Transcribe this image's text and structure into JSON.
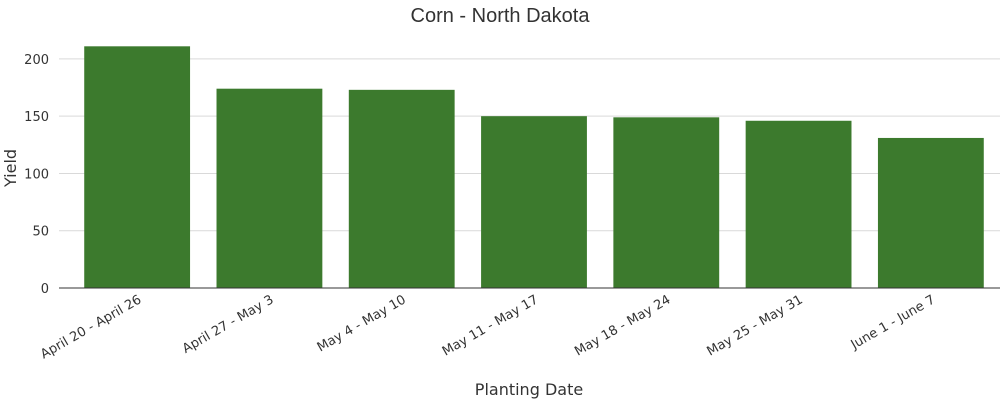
{
  "chart_data": {
    "type": "bar",
    "title": "Corn - North Dakota",
    "xlabel": "Planting Date",
    "ylabel": "Yield",
    "categories": [
      "April 20 - April 26",
      "April 27 - May 3",
      "May 4 - May 10",
      "May 11 - May 17",
      "May 18 - May 24",
      "May 25 - May 31",
      "June 1 - June 7"
    ],
    "values": [
      211,
      174,
      173,
      150,
      149,
      146,
      131
    ],
    "ylim": [
      0,
      220
    ],
    "yticks": [
      0,
      50,
      100,
      150,
      200
    ],
    "grid": true,
    "bar_color": "#3c7a2d"
  }
}
